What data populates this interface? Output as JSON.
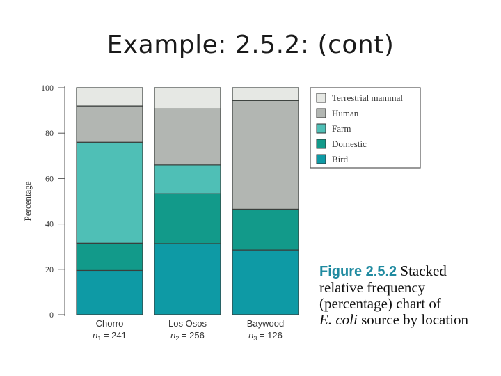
{
  "slide": {
    "title": "Example: 2.5.2: (cont)"
  },
  "caption": {
    "figure_label": "Figure 2.5.2",
    "line1_rest": "Stacked",
    "line2": "relative frequency",
    "line3": "(percentage) chart of",
    "line4_italic": "E. coli",
    "line4_rest": "source by location"
  },
  "colors": {
    "Terrestrial mammal": "#e6e8e4",
    "Human": "#b2b6b2",
    "Farm": "#4fbfb6",
    "Domestic": "#129a8a",
    "Bird": "#0e9aa5"
  },
  "chart_data": {
    "type": "bar",
    "stacked": true,
    "ylabel": "Percentage",
    "xlabel": "",
    "ylim": [
      0,
      100
    ],
    "yticks": [
      0,
      20,
      40,
      60,
      80,
      100
    ],
    "categories": [
      "Chorro",
      "Los Osos",
      "Baywood"
    ],
    "sample_sizes": [
      {
        "var": "n",
        "sub": "1",
        "value": "241"
      },
      {
        "var": "n",
        "sub": "2",
        "value": "256"
      },
      {
        "var": "n",
        "sub": "3",
        "value": "126"
      }
    ],
    "series": [
      {
        "name": "Bird",
        "values": [
          19.5,
          31.3,
          28.5
        ]
      },
      {
        "name": "Domestic",
        "values": [
          12.0,
          22.0,
          18.0
        ]
      },
      {
        "name": "Farm",
        "values": [
          44.5,
          12.7,
          0.0
        ]
      },
      {
        "name": "Human",
        "values": [
          16.0,
          24.7,
          47.9
        ]
      },
      {
        "name": "Terrestrial mammal",
        "values": [
          8.0,
          9.3,
          5.6
        ]
      }
    ],
    "legend_order": [
      "Terrestrial mammal",
      "Human",
      "Farm",
      "Domestic",
      "Bird"
    ],
    "legend_position": "top-right",
    "grid": false
  }
}
